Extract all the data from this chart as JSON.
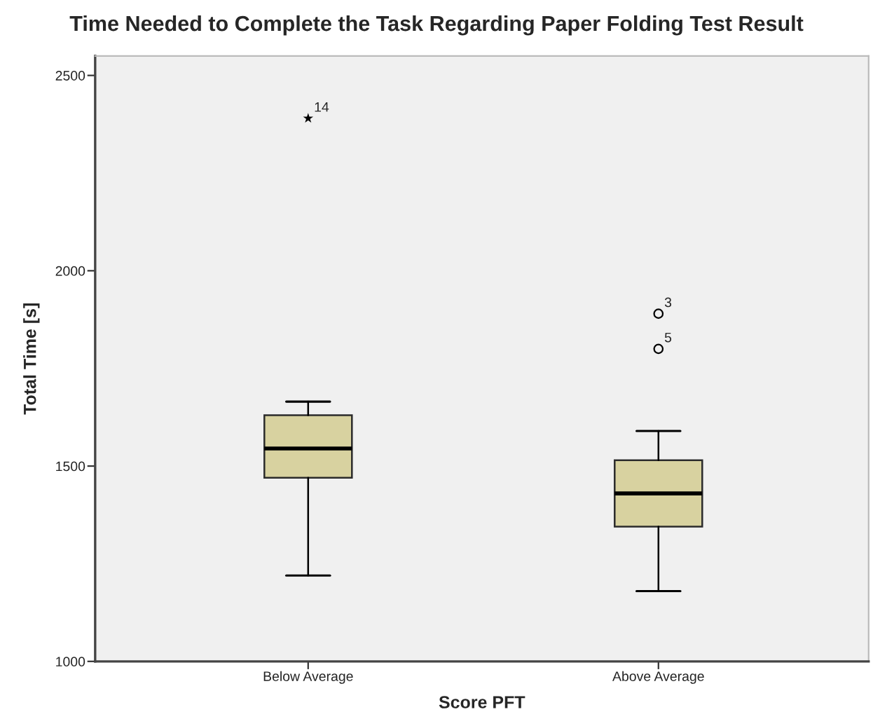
{
  "chart_data": {
    "type": "box",
    "title": "Time Needed to Complete the Task Regarding Paper Folding Test Result",
    "xlabel": "Score PFT",
    "ylabel": "Total Time [s]",
    "categories": [
      "Below Average",
      "Above Average"
    ],
    "ylim": [
      1000,
      2550
    ],
    "yticks": [
      1000,
      1500,
      2000,
      2500
    ],
    "grid": false,
    "series": [
      {
        "type": "box",
        "color": "#d8d2a0",
        "boxes": [
          {
            "low": 1220,
            "q1": 1470,
            "median": 1545,
            "q3": 1630,
            "high": 1665
          },
          {
            "low": 1180,
            "q1": 1345,
            "median": 1430,
            "q3": 1515,
            "high": 1590
          }
        ]
      },
      {
        "type": "scatter",
        "marker": "star",
        "color": "#000000",
        "x": [
          "Below Average"
        ],
        "values": [
          2390
        ]
      },
      {
        "type": "scatter",
        "marker": "circle",
        "color": "#000000",
        "x": [
          "Above Average",
          "Above Average"
        ],
        "values": [
          1890,
          1800
        ]
      }
    ],
    "annotations": [
      {
        "text": "14",
        "x": "Below Average",
        "y": 2390
      },
      {
        "text": "3",
        "x": "Above Average",
        "y": 1890
      },
      {
        "text": "5",
        "x": "Above Average",
        "y": 1800
      }
    ]
  }
}
